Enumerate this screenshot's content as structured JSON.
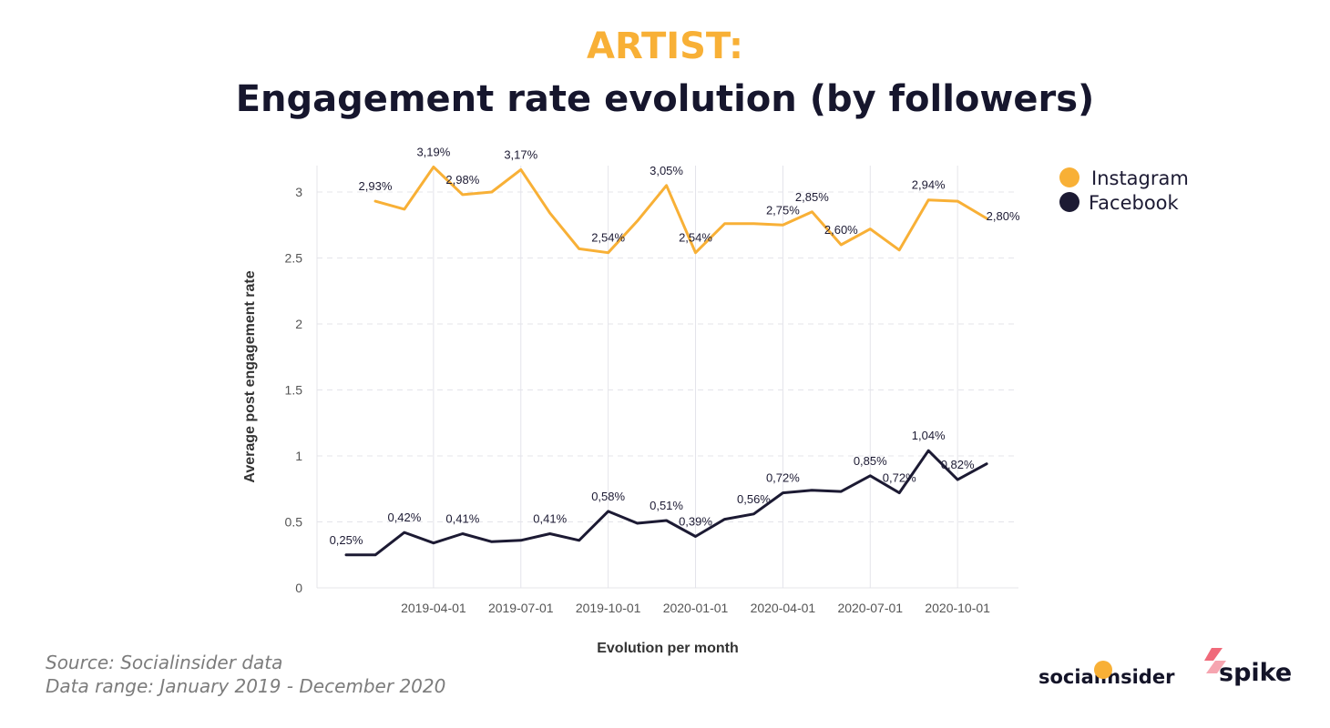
{
  "header": {
    "title": "ARTIST:",
    "subtitle": "Engagement rate evolution (by followers)"
  },
  "footer": {
    "source": "Source: Socialinsider data",
    "range": "Data range: January 2019 - December 2020"
  },
  "logos": {
    "socialinsider": "socialinsider",
    "spike": "spike"
  },
  "colors": {
    "instagram": "#f8b036",
    "facebook": "#1c1a33",
    "title_accent": "#f8b036",
    "grid": "#e4e4ea"
  },
  "chart_data": {
    "type": "line",
    "xlabel": "Evolution per month",
    "ylabel": "Average post engagement rate",
    "ylim": [
      0,
      3.2
    ],
    "yticks": [
      0,
      0.5,
      1,
      1.5,
      2,
      2.5,
      3
    ],
    "ytick_labels": [
      "0",
      "0.5",
      "1",
      "1.5",
      "2",
      "2.5",
      "3"
    ],
    "x": [
      "2019-01-01",
      "2019-02-01",
      "2019-03-01",
      "2019-04-01",
      "2019-05-01",
      "2019-06-01",
      "2019-07-01",
      "2019-08-01",
      "2019-09-01",
      "2019-10-01",
      "2019-11-01",
      "2019-12-01",
      "2020-01-01",
      "2020-02-01",
      "2020-03-01",
      "2020-04-01",
      "2020-05-01",
      "2020-06-01",
      "2020-07-01",
      "2020-08-01",
      "2020-09-01",
      "2020-10-01",
      "2020-11-01",
      "2020-12-01"
    ],
    "xtick_labels": [
      "2019-04-01",
      "2019-07-01",
      "2019-10-01",
      "2020-01-01",
      "2020-04-01",
      "2020-07-01",
      "2020-10-01"
    ],
    "legend_position": "top-right",
    "grid": true,
    "series": [
      {
        "name": "Instagram",
        "color": "#f8b036",
        "values": [
          null,
          2.93,
          2.87,
          3.19,
          2.98,
          3.0,
          3.17,
          2.84,
          2.57,
          2.54,
          2.78,
          3.05,
          2.54,
          2.76,
          2.76,
          2.75,
          2.85,
          2.6,
          2.72,
          2.56,
          2.94,
          2.93,
          2.8,
          null
        ],
        "labels": {
          "1": "2,93%",
          "3": "3,19%",
          "4": "2,98%",
          "6": "3,17%",
          "9": "2,54%",
          "11": "3,05%",
          "12": "2,54%",
          "15": "2,75%",
          "16": "2,85%",
          "17": "2,60%",
          "20": "2,94%",
          "22": "2,80%"
        }
      },
      {
        "name": "Facebook",
        "color": "#1c1a33",
        "values": [
          0.25,
          0.25,
          0.42,
          0.34,
          0.41,
          0.35,
          0.36,
          0.41,
          0.36,
          0.58,
          0.49,
          0.51,
          0.39,
          0.52,
          0.56,
          0.72,
          0.74,
          0.73,
          0.85,
          0.72,
          1.04,
          0.82,
          0.94,
          null
        ],
        "labels": {
          "0": "0,25%",
          "2": "0,42%",
          "4": "0,41%",
          "7": "0,41%",
          "9": "0,58%",
          "11": "0,51%",
          "12": "0,39%",
          "14": "0,56%",
          "15": "0,72%",
          "18": "0,85%",
          "19": "0,72%",
          "20": "1,04%",
          "21": "0,82%"
        }
      }
    ]
  }
}
